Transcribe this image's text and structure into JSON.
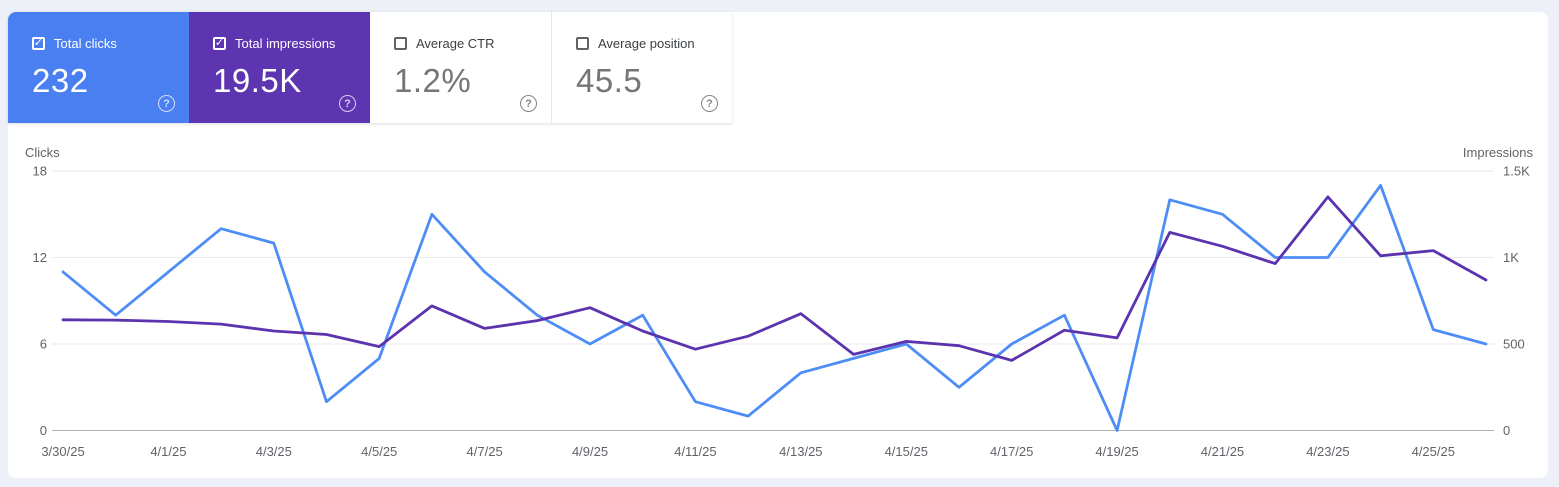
{
  "page": {
    "background_color": "#edf0f7",
    "panel_color": "#ffffff"
  },
  "cards": [
    {
      "label": "Total clicks",
      "value": "232",
      "checked": true,
      "color": "#4a7ff2",
      "help_icon": "question-mark-circle"
    },
    {
      "label": "Total impressions",
      "value": "19.5K",
      "checked": true,
      "color": "#5e35b1",
      "help_icon": "question-mark-circle"
    },
    {
      "label": "Average CTR",
      "value": "1.2%",
      "checked": false,
      "color": "#ffffff",
      "help_icon": "question-mark-circle"
    },
    {
      "label": "Average position",
      "value": "45.5",
      "checked": false,
      "color": "#ffffff",
      "help_icon": "question-mark-circle"
    }
  ],
  "chart_data": {
    "type": "line",
    "title": "",
    "grid": true,
    "legend_position": "none",
    "dates": [
      "3/30/25",
      "3/31/25",
      "4/1/25",
      "4/2/25",
      "4/3/25",
      "4/4/25",
      "4/5/25",
      "4/6/25",
      "4/7/25",
      "4/8/25",
      "4/9/25",
      "4/10/25",
      "4/11/25",
      "4/12/25",
      "4/13/25",
      "4/14/25",
      "4/15/25",
      "4/16/25",
      "4/17/25",
      "4/18/25",
      "4/19/25",
      "4/20/25",
      "4/21/25",
      "4/22/25",
      "4/23/25",
      "4/24/25",
      "4/25/25",
      "4/26/25"
    ],
    "x_tick_every": 2,
    "left_axis": {
      "title": "Clicks",
      "max": 18,
      "ticks": [
        {
          "label": "18",
          "value": 18
        },
        {
          "label": "12",
          "value": 12
        },
        {
          "label": "6",
          "value": 6
        },
        {
          "label": "0",
          "value": 0
        }
      ]
    },
    "right_axis": {
      "title": "Impressions",
      "max": 1500,
      "ticks": [
        {
          "label": "1.5K",
          "value": 1500
        },
        {
          "label": "1K",
          "value": 1000
        },
        {
          "label": "500",
          "value": 500
        },
        {
          "label": "0",
          "value": 0
        }
      ]
    },
    "series": [
      {
        "name": "Total clicks",
        "axis": "left",
        "color": "#4e8df6",
        "values": [
          11,
          8,
          11,
          14,
          13,
          2,
          5,
          15,
          11,
          8,
          6,
          8,
          2,
          1,
          4,
          5,
          6,
          3,
          6,
          8,
          0,
          16,
          15,
          12,
          12,
          17,
          7,
          6
        ]
      },
      {
        "name": "Total impressions",
        "axis": "right",
        "color": "#5c33ae",
        "values": [
          640,
          638,
          630,
          615,
          575,
          555,
          485,
          720,
          590,
          635,
          710,
          575,
          470,
          545,
          675,
          440,
          515,
          490,
          405,
          580,
          535,
          1145,
          1065,
          965,
          1350,
          1010,
          1040,
          870
        ]
      }
    ]
  }
}
